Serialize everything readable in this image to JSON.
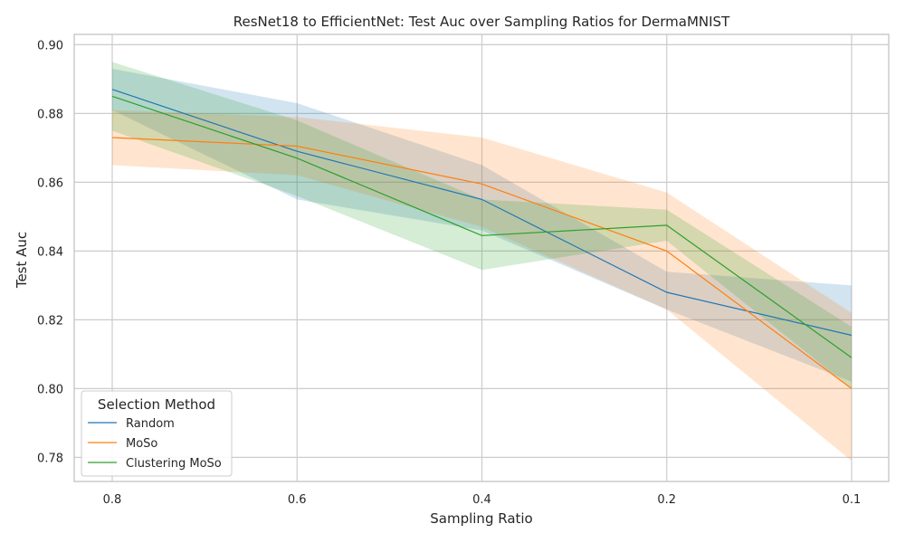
{
  "chart_data": {
    "type": "line",
    "title": "ResNet18 to EfficientNet: Test Auc over Sampling Ratios for DermaMNIST",
    "xlabel": "Sampling Ratio",
    "ylabel": "Test Auc",
    "x_categories": [
      "0.8",
      "0.6",
      "0.4",
      "0.2",
      "0.1"
    ],
    "yticks": [
      "0.78",
      "0.80",
      "0.82",
      "0.84",
      "0.86",
      "0.88",
      "0.90"
    ],
    "ylim": [
      0.773,
      0.903
    ],
    "grid": true,
    "legend": {
      "title": "Selection Method",
      "placement": "lower-left"
    },
    "series": [
      {
        "name": "Random",
        "color": "#1f77b4",
        "values": [
          0.887,
          0.869,
          0.855,
          0.828,
          0.8155
        ],
        "lower": [
          0.881,
          0.855,
          0.846,
          0.823,
          0.802
        ],
        "upper": [
          0.893,
          0.883,
          0.865,
          0.834,
          0.83
        ]
      },
      {
        "name": "MoSo",
        "color": "#ff7f0e",
        "values": [
          0.873,
          0.8705,
          0.8595,
          0.84,
          0.8
        ],
        "lower": [
          0.865,
          0.862,
          0.847,
          0.823,
          0.779
        ],
        "upper": [
          0.881,
          0.879,
          0.873,
          0.857,
          0.822
        ]
      },
      {
        "name": "Clustering MoSo",
        "color": "#2ca02c",
        "values": [
          0.885,
          0.867,
          0.8445,
          0.8475,
          0.809
        ],
        "lower": [
          0.875,
          0.856,
          0.8345,
          0.843,
          0.8
        ],
        "upper": [
          0.895,
          0.878,
          0.855,
          0.852,
          0.818
        ]
      }
    ]
  }
}
